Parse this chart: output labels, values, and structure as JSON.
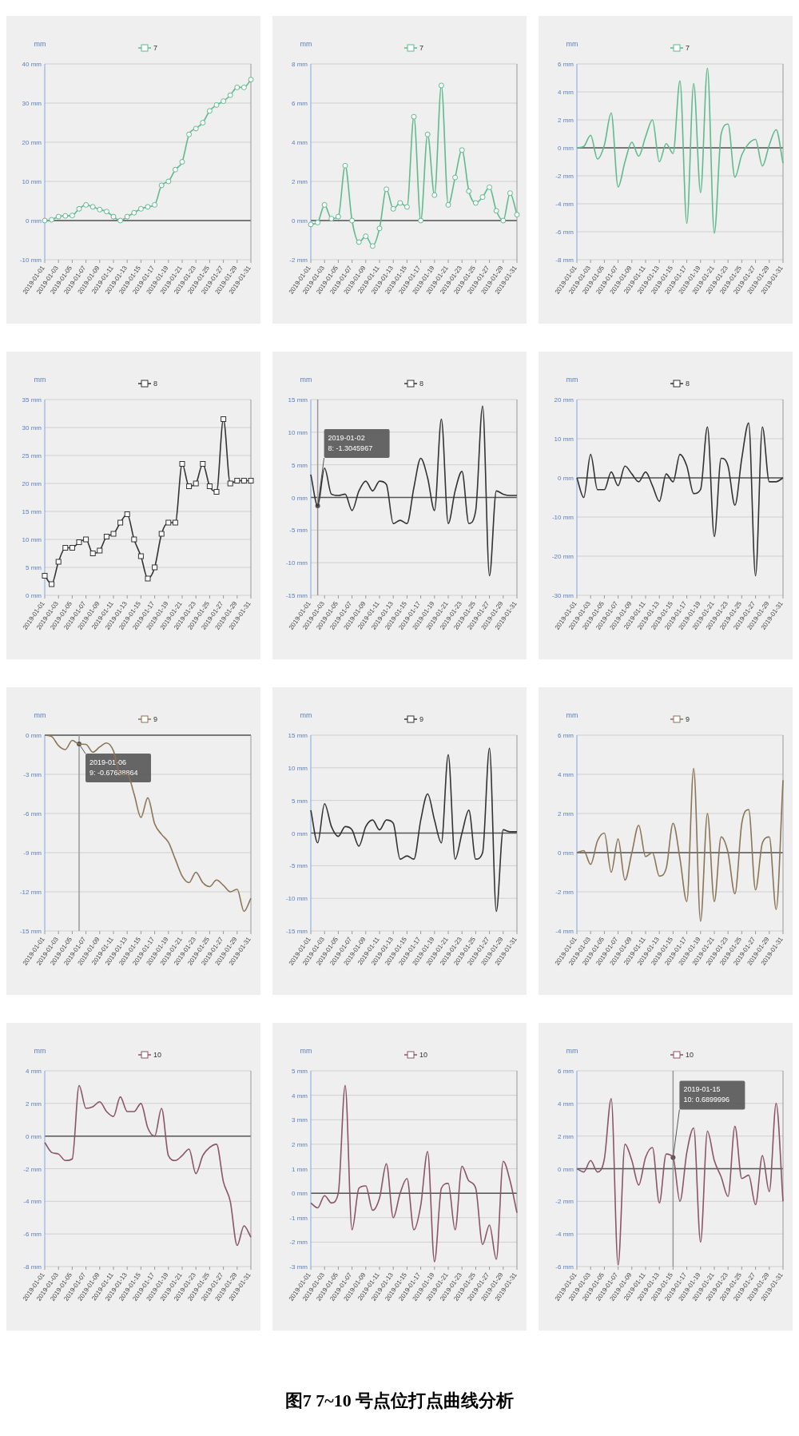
{
  "chart_data": [
    {
      "type": "line",
      "ylabel": "mm",
      "legend": "top",
      "grid": "y",
      "marker": "circle",
      "x": [
        "2019-01-01",
        "2019-01-02",
        "2019-01-03",
        "2019-01-04",
        "2019-01-05",
        "2019-01-06",
        "2019-01-07",
        "2019-01-08",
        "2019-01-09",
        "2019-01-10",
        "2019-01-11",
        "2019-01-12",
        "2019-01-13",
        "2019-01-14",
        "2019-01-15",
        "2019-01-16",
        "2019-01-17",
        "2019-01-18",
        "2019-01-19",
        "2019-01-20",
        "2019-01-21",
        "2019-01-22",
        "2019-01-23",
        "2019-01-24",
        "2019-01-25",
        "2019-01-26",
        "2019-01-27",
        "2019-01-28",
        "2019-01-29",
        "2019-01-30",
        "2019-01-31"
      ],
      "xlim": [
        "2019-01-01",
        "2019-01-31"
      ],
      "xticks": [
        "2019-01-01",
        "2019-01-03",
        "2019-01-05",
        "2019-01-07",
        "2019-01-09",
        "2019-01-11",
        "2019-01-13",
        "2019-01-15",
        "2019-01-17",
        "2019-01-19",
        "2019-01-21",
        "2019-01-23",
        "2019-01-25",
        "2019-01-27",
        "2019-01-29",
        "2019-01-31"
      ],
      "ylim": [
        -10,
        40
      ],
      "yticks": [
        {
          "value": -10,
          "label": "-10 mm"
        },
        {
          "value": 0,
          "label": "0 mm"
        },
        {
          "value": 10,
          "label": "10 mm"
        },
        {
          "value": 20,
          "label": "20 mm"
        },
        {
          "value": 30,
          "label": "30 mm"
        },
        {
          "value": 40,
          "label": "40 mm"
        }
      ],
      "ref_lines": [
        {
          "axis": "y",
          "value": 0,
          "color": "#555555"
        }
      ],
      "series": [
        {
          "name": "7",
          "color": "#5fba8e",
          "values": [
            0,
            0.2,
            1,
            1.2,
            1.3,
            3,
            4,
            3.5,
            2.8,
            2.3,
            1,
            0,
            1,
            2,
            3,
            3.5,
            4,
            9,
            10,
            13,
            15,
            22,
            23.5,
            25,
            28,
            29.5,
            30.5,
            32,
            34,
            34,
            36
          ]
        }
      ]
    },
    {
      "type": "line",
      "ylabel": "mm",
      "legend": "top",
      "grid": "y",
      "marker": "circle",
      "x": [
        "2019-01-01",
        "2019-01-02",
        "2019-01-03",
        "2019-01-04",
        "2019-01-05",
        "2019-01-06",
        "2019-01-07",
        "2019-01-08",
        "2019-01-09",
        "2019-01-10",
        "2019-01-11",
        "2019-01-12",
        "2019-01-13",
        "2019-01-14",
        "2019-01-15",
        "2019-01-16",
        "2019-01-17",
        "2019-01-18",
        "2019-01-19",
        "2019-01-20",
        "2019-01-21",
        "2019-01-22",
        "2019-01-23",
        "2019-01-24",
        "2019-01-25",
        "2019-01-26",
        "2019-01-27",
        "2019-01-28",
        "2019-01-29",
        "2019-01-30",
        "2019-01-31"
      ],
      "xlim": [
        "2019-01-01",
        "2019-01-31"
      ],
      "xticks": [
        "2019-01-01",
        "2019-01-03",
        "2019-01-05",
        "2019-01-07",
        "2019-01-09",
        "2019-01-11",
        "2019-01-13",
        "2019-01-15",
        "2019-01-17",
        "2019-01-19",
        "2019-01-21",
        "2019-01-23",
        "2019-01-25",
        "2019-01-27",
        "2019-01-29",
        "2019-01-31"
      ],
      "ylim": [
        -2,
        8
      ],
      "yticks": [
        {
          "value": -2,
          "label": "-2 mm"
        },
        {
          "value": 0,
          "label": "0 mm"
        },
        {
          "value": 2,
          "label": "2 mm"
        },
        {
          "value": 4,
          "label": "4 mm"
        },
        {
          "value": 6,
          "label": "6 mm"
        },
        {
          "value": 8,
          "label": "8 mm"
        }
      ],
      "ref_lines": [
        {
          "axis": "y",
          "value": 0,
          "color": "#555555"
        }
      ],
      "series": [
        {
          "name": "7",
          "color": "#5fba8e",
          "values": [
            -0.2,
            -0.1,
            0.8,
            0.1,
            0.2,
            2.8,
            0,
            -1.1,
            -0.8,
            -1.3,
            -0.4,
            1.6,
            0.6,
            0.9,
            0.7,
            5.3,
            0,
            4.4,
            1.3,
            6.9,
            0.8,
            2.2,
            3.6,
            1.5,
            0.9,
            1.2,
            1.7,
            0.5,
            0,
            1.4,
            0.3
          ]
        }
      ]
    },
    {
      "type": "line",
      "ylabel": "mm",
      "legend": "top",
      "grid": "y",
      "x": [
        "2019-01-01",
        "2019-01-02",
        "2019-01-03",
        "2019-01-04",
        "2019-01-05",
        "2019-01-06",
        "2019-01-07",
        "2019-01-08",
        "2019-01-09",
        "2019-01-10",
        "2019-01-11",
        "2019-01-12",
        "2019-01-13",
        "2019-01-14",
        "2019-01-15",
        "2019-01-16",
        "2019-01-17",
        "2019-01-18",
        "2019-01-19",
        "2019-01-20",
        "2019-01-21",
        "2019-01-22",
        "2019-01-23",
        "2019-01-24",
        "2019-01-25",
        "2019-01-26",
        "2019-01-27",
        "2019-01-28",
        "2019-01-29",
        "2019-01-30",
        "2019-01-31"
      ],
      "xlim": [
        "2019-01-01",
        "2019-01-31"
      ],
      "xticks": [
        "2019-01-01",
        "2019-01-03",
        "2019-01-05",
        "2019-01-07",
        "2019-01-09",
        "2019-01-11",
        "2019-01-13",
        "2019-01-15",
        "2019-01-17",
        "2019-01-19",
        "2019-01-21",
        "2019-01-23",
        "2019-01-25",
        "2019-01-27",
        "2019-01-29",
        "2019-01-31"
      ],
      "ylim": [
        -8,
        6
      ],
      "yticks": [
        {
          "value": -8,
          "label": "-8 mm"
        },
        {
          "value": -6,
          "label": "-6 mm"
        },
        {
          "value": -4,
          "label": "-4 mm"
        },
        {
          "value": -2,
          "label": "-2 mm"
        },
        {
          "value": 0,
          "label": "0 mm"
        },
        {
          "value": 2,
          "label": "2 mm"
        },
        {
          "value": 4,
          "label": "4 mm"
        },
        {
          "value": 6,
          "label": "6 mm"
        }
      ],
      "ref_lines": [
        {
          "axis": "y",
          "value": 0,
          "color": "#555555"
        }
      ],
      "series": [
        {
          "name": "7",
          "color": "#5fba8e",
          "values": [
            0,
            0.1,
            0.9,
            -0.8,
            0.2,
            2.5,
            -2.8,
            -1,
            0.4,
            -0.6,
            0.8,
            2,
            -1,
            0.3,
            -0.4,
            4.8,
            -5.4,
            4.6,
            -3.2,
            5.7,
            -6.1,
            1,
            1.7,
            -2.1,
            -0.5,
            0.3,
            0.6,
            -1.3,
            0.2,
            1.3,
            -1.1
          ]
        }
      ]
    },
    {
      "type": "line",
      "ylabel": "mm",
      "legend": "top",
      "grid": "y",
      "marker": "square",
      "x": [
        "2019-01-01",
        "2019-01-02",
        "2019-01-03",
        "2019-01-04",
        "2019-01-05",
        "2019-01-06",
        "2019-01-07",
        "2019-01-08",
        "2019-01-09",
        "2019-01-10",
        "2019-01-11",
        "2019-01-12",
        "2019-01-13",
        "2019-01-14",
        "2019-01-15",
        "2019-01-16",
        "2019-01-17",
        "2019-01-18",
        "2019-01-19",
        "2019-01-20",
        "2019-01-21",
        "2019-01-22",
        "2019-01-23",
        "2019-01-24",
        "2019-01-25",
        "2019-01-26",
        "2019-01-27",
        "2019-01-28",
        "2019-01-29",
        "2019-01-30",
        "2019-01-31"
      ],
      "xlim": [
        "2019-01-01",
        "2019-01-31"
      ],
      "xticks": [
        "2019-01-01",
        "2019-01-03",
        "2019-01-05",
        "2019-01-07",
        "2019-01-09",
        "2019-01-11",
        "2019-01-13",
        "2019-01-15",
        "2019-01-17",
        "2019-01-19",
        "2019-01-21",
        "2019-01-23",
        "2019-01-25",
        "2019-01-27",
        "2019-01-29",
        "2019-01-31"
      ],
      "ylim": [
        0,
        35
      ],
      "yticks": [
        {
          "value": 0,
          "label": "0 mm"
        },
        {
          "value": 5,
          "label": "5 mm"
        },
        {
          "value": 10,
          "label": "10 mm"
        },
        {
          "value": 15,
          "label": "15 mm"
        },
        {
          "value": 20,
          "label": "20 mm"
        },
        {
          "value": 25,
          "label": "25 mm"
        },
        {
          "value": 30,
          "label": "30 mm"
        },
        {
          "value": 35,
          "label": "35 mm"
        }
      ],
      "series": [
        {
          "name": "8",
          "color": "#333333",
          "values": [
            3.5,
            2,
            6,
            8.5,
            8.5,
            9.5,
            10,
            7.5,
            8,
            10.5,
            11,
            13,
            14.5,
            10,
            7,
            3,
            5,
            11,
            13,
            13,
            23.5,
            19.5,
            20,
            23.5,
            19.5,
            18.5,
            31.5,
            20,
            20.5,
            20.5,
            20.5
          ]
        }
      ]
    },
    {
      "type": "line",
      "ylabel": "mm",
      "legend": "top",
      "grid": "y",
      "x": [
        "2019-01-01",
        "2019-01-02",
        "2019-01-03",
        "2019-01-04",
        "2019-01-05",
        "2019-01-06",
        "2019-01-07",
        "2019-01-08",
        "2019-01-09",
        "2019-01-10",
        "2019-01-11",
        "2019-01-12",
        "2019-01-13",
        "2019-01-14",
        "2019-01-15",
        "2019-01-16",
        "2019-01-17",
        "2019-01-18",
        "2019-01-19",
        "2019-01-20",
        "2019-01-21",
        "2019-01-22",
        "2019-01-23",
        "2019-01-24",
        "2019-01-25",
        "2019-01-26",
        "2019-01-27",
        "2019-01-28",
        "2019-01-29",
        "2019-01-30",
        "2019-01-31"
      ],
      "xlim": [
        "2019-01-01",
        "2019-01-31"
      ],
      "xticks": [
        "2019-01-01",
        "2019-01-03",
        "2019-01-05",
        "2019-01-07",
        "2019-01-09",
        "2019-01-11",
        "2019-01-13",
        "2019-01-15",
        "2019-01-17",
        "2019-01-19",
        "2019-01-21",
        "2019-01-23",
        "2019-01-25",
        "2019-01-27",
        "2019-01-29",
        "2019-01-31"
      ],
      "ylim": [
        -15,
        15
      ],
      "yticks": [
        {
          "value": -15,
          "label": "-15 mm"
        },
        {
          "value": -10,
          "label": "-10 mm"
        },
        {
          "value": -5,
          "label": "-5 mm"
        },
        {
          "value": 0,
          "label": "0 mm"
        },
        {
          "value": 5,
          "label": "5 mm"
        },
        {
          "value": 10,
          "label": "10 mm"
        },
        {
          "value": 15,
          "label": "15 mm"
        }
      ],
      "ref_lines": [
        {
          "axis": "y",
          "value": 0,
          "color": "#555555"
        },
        {
          "axis": "x",
          "value": "2019-01-02",
          "color": "#999999"
        }
      ],
      "annotations": [
        {
          "text": "2019-01-02\n8: -1.3045967",
          "x": "2019-01-02",
          "y": -1.3
        }
      ],
      "series": [
        {
          "name": "8",
          "color": "#333333",
          "values": [
            3.5,
            -1.3,
            4.5,
            0.5,
            0.3,
            0.5,
            -2,
            1,
            2.5,
            1,
            2.5,
            2,
            -4,
            -3.5,
            -4,
            1.5,
            6,
            3,
            -2,
            12,
            -4,
            1,
            4,
            -4,
            -2,
            14,
            -12,
            1,
            0.5,
            0.3,
            0.3
          ]
        }
      ]
    },
    {
      "type": "line",
      "ylabel": "mm",
      "legend": "top",
      "grid": "y",
      "x": [
        "2019-01-01",
        "2019-01-02",
        "2019-01-03",
        "2019-01-04",
        "2019-01-05",
        "2019-01-06",
        "2019-01-07",
        "2019-01-08",
        "2019-01-09",
        "2019-01-10",
        "2019-01-11",
        "2019-01-12",
        "2019-01-13",
        "2019-01-14",
        "2019-01-15",
        "2019-01-16",
        "2019-01-17",
        "2019-01-18",
        "2019-01-19",
        "2019-01-20",
        "2019-01-21",
        "2019-01-22",
        "2019-01-23",
        "2019-01-24",
        "2019-01-25",
        "2019-01-26",
        "2019-01-27",
        "2019-01-28",
        "2019-01-29",
        "2019-01-30",
        "2019-01-31"
      ],
      "xlim": [
        "2019-01-01",
        "2019-01-31"
      ],
      "xticks": [
        "2019-01-01",
        "2019-01-03",
        "2019-01-05",
        "2019-01-07",
        "2019-01-09",
        "2019-01-11",
        "2019-01-13",
        "2019-01-15",
        "2019-01-17",
        "2019-01-19",
        "2019-01-21",
        "2019-01-23",
        "2019-01-25",
        "2019-01-27",
        "2019-01-29",
        "2019-01-31"
      ],
      "ylim": [
        -30,
        20
      ],
      "yticks": [
        {
          "value": -30,
          "label": "-30 mm"
        },
        {
          "value": -20,
          "label": "-20 mm"
        },
        {
          "value": -10,
          "label": "-10 mm"
        },
        {
          "value": 0,
          "label": "0 mm"
        },
        {
          "value": 10,
          "label": "10 mm"
        },
        {
          "value": 20,
          "label": "20 mm"
        }
      ],
      "ref_lines": [
        {
          "axis": "y",
          "value": 0,
          "color": "#555555"
        }
      ],
      "series": [
        {
          "name": "8",
          "color": "#333333",
          "values": [
            0,
            -5,
            6,
            -3,
            -3,
            1.5,
            -2,
            3,
            1,
            -1,
            1.5,
            -2,
            -6,
            1,
            -1,
            6,
            3,
            -4,
            -3,
            13,
            -15,
            5,
            3,
            -7,
            5,
            14,
            -25,
            13,
            -1,
            -1,
            0
          ]
        }
      ]
    },
    {
      "type": "line",
      "ylabel": "mm",
      "legend": "top",
      "grid": "y",
      "x": [
        "2019-01-01",
        "2019-01-02",
        "2019-01-03",
        "2019-01-04",
        "2019-01-05",
        "2019-01-06",
        "2019-01-07",
        "2019-01-08",
        "2019-01-09",
        "2019-01-10",
        "2019-01-11",
        "2019-01-12",
        "2019-01-13",
        "2019-01-14",
        "2019-01-15",
        "2019-01-16",
        "2019-01-17",
        "2019-01-18",
        "2019-01-19",
        "2019-01-20",
        "2019-01-21",
        "2019-01-22",
        "2019-01-23",
        "2019-01-24",
        "2019-01-25",
        "2019-01-26",
        "2019-01-27",
        "2019-01-28",
        "2019-01-29",
        "2019-01-30",
        "2019-01-31"
      ],
      "xlim": [
        "2019-01-01",
        "2019-01-31"
      ],
      "xticks": [
        "2019-01-01",
        "2019-01-03",
        "2019-01-05",
        "2019-01-07",
        "2019-01-09",
        "2019-01-11",
        "2019-01-13",
        "2019-01-15",
        "2019-01-17",
        "2019-01-19",
        "2019-01-21",
        "2019-01-23",
        "2019-01-25",
        "2019-01-27",
        "2019-01-29",
        "2019-01-31"
      ],
      "ylim": [
        -15,
        0
      ],
      "yticks": [
        {
          "value": -15,
          "label": "-15 mm"
        },
        {
          "value": -12,
          "label": "-12 mm"
        },
        {
          "value": -9,
          "label": "-9 mm"
        },
        {
          "value": -6,
          "label": "-6 mm"
        },
        {
          "value": -3,
          "label": "-3 mm"
        },
        {
          "value": 0,
          "label": "0 mm"
        }
      ],
      "ref_lines": [
        {
          "axis": "y",
          "value": 0,
          "color": "#555555"
        },
        {
          "axis": "x",
          "value": "2019-01-06",
          "color": "#999999"
        }
      ],
      "annotations": [
        {
          "text": "2019-01-06\n9: -0.67688864",
          "x": "2019-01-06",
          "y": -0.68
        }
      ],
      "series": [
        {
          "name": "9",
          "color": "#8a7556",
          "values": [
            0,
            -0.1,
            -0.8,
            -1.1,
            -0.4,
            -0.68,
            -0.7,
            -1.3,
            -0.9,
            -0.6,
            -1.2,
            -3,
            -3,
            -4.5,
            -6.3,
            -4.8,
            -6.8,
            -7.6,
            -8.2,
            -9.5,
            -10.8,
            -11.3,
            -10.5,
            -11.3,
            -11.6,
            -11.1,
            -11.5,
            -12,
            -11.8,
            -13.5,
            -12.5
          ]
        }
      ]
    },
    {
      "type": "line",
      "ylabel": "mm",
      "legend": "top",
      "grid": "y",
      "x": [
        "2019-01-01",
        "2019-01-02",
        "2019-01-03",
        "2019-01-04",
        "2019-01-05",
        "2019-01-06",
        "2019-01-07",
        "2019-01-08",
        "2019-01-09",
        "2019-01-10",
        "2019-01-11",
        "2019-01-12",
        "2019-01-13",
        "2019-01-14",
        "2019-01-15",
        "2019-01-16",
        "2019-01-17",
        "2019-01-18",
        "2019-01-19",
        "2019-01-20",
        "2019-01-21",
        "2019-01-22",
        "2019-01-23",
        "2019-01-24",
        "2019-01-25",
        "2019-01-26",
        "2019-01-27",
        "2019-01-28",
        "2019-01-29",
        "2019-01-30",
        "2019-01-31"
      ],
      "xlim": [
        "2019-01-01",
        "2019-01-31"
      ],
      "xticks": [
        "2019-01-01",
        "2019-01-03",
        "2019-01-05",
        "2019-01-07",
        "2019-01-09",
        "2019-01-11",
        "2019-01-13",
        "2019-01-15",
        "2019-01-17",
        "2019-01-19",
        "2019-01-21",
        "2019-01-23",
        "2019-01-25",
        "2019-01-27",
        "2019-01-29",
        "2019-01-31"
      ],
      "ylim": [
        -15,
        15
      ],
      "yticks": [
        {
          "value": -15,
          "label": "-15 mm"
        },
        {
          "value": -10,
          "label": "-10 mm"
        },
        {
          "value": -5,
          "label": "-5 mm"
        },
        {
          "value": 0,
          "label": "0 mm"
        },
        {
          "value": 5,
          "label": "5 mm"
        },
        {
          "value": 10,
          "label": "10 mm"
        },
        {
          "value": 15,
          "label": "15 mm"
        }
      ],
      "ref_lines": [
        {
          "axis": "y",
          "value": 0,
          "color": "#555555"
        }
      ],
      "series": [
        {
          "name": "9",
          "color": "#333333",
          "values": [
            3.5,
            -1.5,
            4.5,
            1,
            -0.5,
            1,
            0.5,
            -2,
            1,
            2,
            0.5,
            2,
            1.5,
            -4,
            -3.5,
            -4,
            2,
            6,
            2,
            -1.5,
            12,
            -4,
            0,
            3.5,
            -4,
            -3,
            13,
            -12,
            0.5,
            0.2,
            0.2
          ]
        }
      ]
    },
    {
      "type": "line",
      "ylabel": "mm",
      "legend": "top",
      "grid": "y",
      "x": [
        "2019-01-01",
        "2019-01-02",
        "2019-01-03",
        "2019-01-04",
        "2019-01-05",
        "2019-01-06",
        "2019-01-07",
        "2019-01-08",
        "2019-01-09",
        "2019-01-10",
        "2019-01-11",
        "2019-01-12",
        "2019-01-13",
        "2019-01-14",
        "2019-01-15",
        "2019-01-16",
        "2019-01-17",
        "2019-01-18",
        "2019-01-19",
        "2019-01-20",
        "2019-01-21",
        "2019-01-22",
        "2019-01-23",
        "2019-01-24",
        "2019-01-25",
        "2019-01-26",
        "2019-01-27",
        "2019-01-28",
        "2019-01-29",
        "2019-01-30",
        "2019-01-31"
      ],
      "xlim": [
        "2019-01-01",
        "2019-01-31"
      ],
      "xticks": [
        "2019-01-01",
        "2019-01-03",
        "2019-01-05",
        "2019-01-07",
        "2019-01-09",
        "2019-01-11",
        "2019-01-13",
        "2019-01-15",
        "2019-01-17",
        "2019-01-19",
        "2019-01-21",
        "2019-01-23",
        "2019-01-25",
        "2019-01-27",
        "2019-01-29",
        "2019-01-31"
      ],
      "ylim": [
        -4,
        6
      ],
      "yticks": [
        {
          "value": -4,
          "label": "-4 mm"
        },
        {
          "value": -2,
          "label": "-2 mm"
        },
        {
          "value": 0,
          "label": "0 mm"
        },
        {
          "value": 2,
          "label": "2 mm"
        },
        {
          "value": 4,
          "label": "4 mm"
        },
        {
          "value": 6,
          "label": "6 mm"
        }
      ],
      "ref_lines": [
        {
          "axis": "y",
          "value": 0,
          "color": "#555555"
        }
      ],
      "series": [
        {
          "name": "9",
          "color": "#8a7556",
          "values": [
            0,
            0.1,
            -0.6,
            0.6,
            1,
            -1,
            0.7,
            -1.4,
            0,
            1.4,
            -0.2,
            0,
            -1.2,
            -0.8,
            1.5,
            -0.3,
            -2.5,
            4.3,
            -3.5,
            2,
            -2.5,
            0.8,
            0,
            -2.1,
            1.5,
            2.2,
            -1.9,
            0.5,
            0.8,
            -2.9,
            3.7
          ]
        }
      ]
    },
    {
      "type": "line",
      "ylabel": "mm",
      "legend": "top",
      "grid": "y",
      "x": [
        "2019-01-01",
        "2019-01-02",
        "2019-01-03",
        "2019-01-04",
        "2019-01-05",
        "2019-01-06",
        "2019-01-07",
        "2019-01-08",
        "2019-01-09",
        "2019-01-10",
        "2019-01-11",
        "2019-01-12",
        "2019-01-13",
        "2019-01-14",
        "2019-01-15",
        "2019-01-16",
        "2019-01-17",
        "2019-01-18",
        "2019-01-19",
        "2019-01-20",
        "2019-01-21",
        "2019-01-22",
        "2019-01-23",
        "2019-01-24",
        "2019-01-25",
        "2019-01-26",
        "2019-01-27",
        "2019-01-28",
        "2019-01-29",
        "2019-01-30",
        "2019-01-31"
      ],
      "xlim": [
        "2019-01-01",
        "2019-01-31"
      ],
      "xticks": [
        "2019-01-01",
        "2019-01-03",
        "2019-01-05",
        "2019-01-07",
        "2019-01-09",
        "2019-01-11",
        "2019-01-13",
        "2019-01-15",
        "2019-01-17",
        "2019-01-19",
        "2019-01-21",
        "2019-01-23",
        "2019-01-25",
        "2019-01-27",
        "2019-01-29",
        "2019-01-31"
      ],
      "ylim": [
        -8,
        4
      ],
      "yticks": [
        {
          "value": -8,
          "label": "-8 mm"
        },
        {
          "value": -6,
          "label": "-6 mm"
        },
        {
          "value": -4,
          "label": "-4 mm"
        },
        {
          "value": -2,
          "label": "-2 mm"
        },
        {
          "value": 0,
          "label": "0 mm"
        },
        {
          "value": 2,
          "label": "2 mm"
        },
        {
          "value": 4,
          "label": "4 mm"
        }
      ],
      "ref_lines": [
        {
          "axis": "y",
          "value": 0,
          "color": "#555555"
        }
      ],
      "series": [
        {
          "name": "10",
          "color": "#8a5566",
          "values": [
            -0.4,
            -1,
            -1.1,
            -1.5,
            -1.4,
            3.1,
            1.7,
            1.8,
            2.1,
            1.5,
            1.2,
            2.4,
            1.5,
            1.5,
            2,
            0.5,
            0,
            1.7,
            -1.2,
            -1.5,
            -1.2,
            -0.8,
            -2.3,
            -1.2,
            -0.7,
            -0.5,
            -2.8,
            -4,
            -6.7,
            -5.5,
            -6.2
          ]
        }
      ]
    },
    {
      "type": "line",
      "ylabel": "mm",
      "legend": "top",
      "grid": "y",
      "x": [
        "2019-01-01",
        "2019-01-02",
        "2019-01-03",
        "2019-01-04",
        "2019-01-05",
        "2019-01-06",
        "2019-01-07",
        "2019-01-08",
        "2019-01-09",
        "2019-01-10",
        "2019-01-11",
        "2019-01-12",
        "2019-01-13",
        "2019-01-14",
        "2019-01-15",
        "2019-01-16",
        "2019-01-17",
        "2019-01-18",
        "2019-01-19",
        "2019-01-20",
        "2019-01-21",
        "2019-01-22",
        "2019-01-23",
        "2019-01-24",
        "2019-01-25",
        "2019-01-26",
        "2019-01-27",
        "2019-01-28",
        "2019-01-29",
        "2019-01-30",
        "2019-01-31"
      ],
      "xlim": [
        "2019-01-01",
        "2019-01-31"
      ],
      "xticks": [
        "2019-01-01",
        "2019-01-03",
        "2019-01-05",
        "2019-01-07",
        "2019-01-09",
        "2019-01-11",
        "2019-01-13",
        "2019-01-15",
        "2019-01-17",
        "2019-01-19",
        "2019-01-21",
        "2019-01-23",
        "2019-01-25",
        "2019-01-27",
        "2019-01-29",
        "2019-01-31"
      ],
      "ylim": [
        -3,
        5
      ],
      "yticks": [
        {
          "value": -3,
          "label": "-3 mm"
        },
        {
          "value": -2,
          "label": "-2 mm"
        },
        {
          "value": -1,
          "label": "-1 mm"
        },
        {
          "value": 0,
          "label": "0 mm"
        },
        {
          "value": 1,
          "label": "1 mm"
        },
        {
          "value": 2,
          "label": "2 mm"
        },
        {
          "value": 3,
          "label": "3 mm"
        },
        {
          "value": 4,
          "label": "4 mm"
        },
        {
          "value": 5,
          "label": "5 mm"
        }
      ],
      "ref_lines": [
        {
          "axis": "y",
          "value": 0,
          "color": "#555555"
        }
      ],
      "series": [
        {
          "name": "10",
          "color": "#8a5566",
          "values": [
            -0.4,
            -0.6,
            -0.1,
            -0.4,
            0,
            4.4,
            -1.5,
            0.2,
            0.3,
            -0.7,
            -0.2,
            1.2,
            -1,
            0,
            0.6,
            -1.5,
            -0.5,
            1.7,
            -2.8,
            0.2,
            0.4,
            -1.5,
            1.1,
            0.5,
            0.2,
            -2.1,
            -1.3,
            -2.7,
            1.3,
            0.5,
            -0.8
          ]
        }
      ]
    },
    {
      "type": "line",
      "ylabel": "mm",
      "legend": "top",
      "grid": "y",
      "x": [
        "2019-01-01",
        "2019-01-02",
        "2019-01-03",
        "2019-01-04",
        "2019-01-05",
        "2019-01-06",
        "2019-01-07",
        "2019-01-08",
        "2019-01-09",
        "2019-01-10",
        "2019-01-11",
        "2019-01-12",
        "2019-01-13",
        "2019-01-14",
        "2019-01-15",
        "2019-01-16",
        "2019-01-17",
        "2019-01-18",
        "2019-01-19",
        "2019-01-20",
        "2019-01-21",
        "2019-01-22",
        "2019-01-23",
        "2019-01-24",
        "2019-01-25",
        "2019-01-26",
        "2019-01-27",
        "2019-01-28",
        "2019-01-29",
        "2019-01-30",
        "2019-01-31"
      ],
      "xlim": [
        "2019-01-01",
        "2019-01-31"
      ],
      "xticks": [
        "2019-01-01",
        "2019-01-03",
        "2019-01-05",
        "2019-01-07",
        "2019-01-09",
        "2019-01-11",
        "2019-01-13",
        "2019-01-15",
        "2019-01-17",
        "2019-01-19",
        "2019-01-21",
        "2019-01-23",
        "2019-01-25",
        "2019-01-27",
        "2019-01-29",
        "2019-01-31"
      ],
      "ylim": [
        -6,
        6
      ],
      "yticks": [
        {
          "value": -6,
          "label": "-6 mm"
        },
        {
          "value": -4,
          "label": "-4 mm"
        },
        {
          "value": -2,
          "label": "-2 mm"
        },
        {
          "value": 0,
          "label": "0 mm"
        },
        {
          "value": 2,
          "label": "2 mm"
        },
        {
          "value": 4,
          "label": "4 mm"
        },
        {
          "value": 6,
          "label": "6 mm"
        }
      ],
      "ref_lines": [
        {
          "axis": "y",
          "value": 0,
          "color": "#555555"
        },
        {
          "axis": "x",
          "value": "2019-01-15",
          "color": "#999999"
        }
      ],
      "annotations": [
        {
          "text": "2019-01-15\n10: 0.6899996",
          "x": "2019-01-15",
          "y": 0.69
        },
        "图7   7~10 号点位打点曲线分析"
      ],
      "series": [
        {
          "name": "10",
          "color": "#8a5566",
          "values": [
            0,
            -0.2,
            0.5,
            -0.2,
            0.6,
            4.3,
            -5.9,
            1.5,
            0.5,
            -1,
            0.7,
            1.3,
            -2.1,
            0.9,
            0.69,
            -2,
            1,
            2.5,
            -4.5,
            2.3,
            0.5,
            -0.5,
            -1.7,
            2.6,
            -0.6,
            -0.4,
            -2.2,
            0.8,
            -1.4,
            4,
            -2
          ]
        }
      ]
    }
  ]
}
